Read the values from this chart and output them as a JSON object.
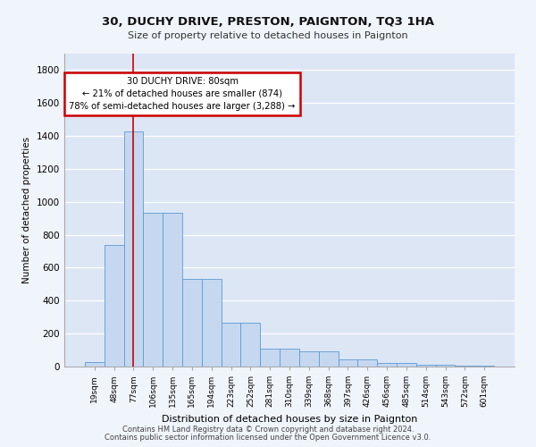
{
  "title": "30, DUCHY DRIVE, PRESTON, PAIGNTON, TQ3 1HA",
  "subtitle": "Size of property relative to detached houses in Paignton",
  "xlabel": "Distribution of detached houses by size in Paignton",
  "ylabel": "Number of detached properties",
  "categories": [
    "19sqm",
    "48sqm",
    "77sqm",
    "106sqm",
    "135sqm",
    "165sqm",
    "194sqm",
    "223sqm",
    "252sqm",
    "281sqm",
    "310sqm",
    "339sqm",
    "368sqm",
    "397sqm",
    "426sqm",
    "456sqm",
    "485sqm",
    "514sqm",
    "543sqm",
    "572sqm",
    "601sqm"
  ],
  "values": [
    25,
    740,
    1430,
    935,
    935,
    530,
    530,
    265,
    265,
    110,
    110,
    95,
    95,
    45,
    45,
    20,
    20,
    10,
    10,
    8,
    8
  ],
  "bar_color": "#c5d8f0",
  "bar_edge_color": "#5b9bd5",
  "bg_color": "#dce6f5",
  "grid_color": "#ffffff",
  "redline_index": 2,
  "annotation_line1": "30 DUCHY DRIVE: 80sqm",
  "annotation_line2": "← 21% of detached houses are smaller (874)",
  "annotation_line3": "78% of semi-detached houses are larger (3,288) →",
  "annotation_box_color": "#ffffff",
  "annotation_box_edge": "#cc0000",
  "ylim": [
    0,
    1900
  ],
  "yticks": [
    0,
    200,
    400,
    600,
    800,
    1000,
    1200,
    1400,
    1600,
    1800
  ],
  "footer1": "Contains HM Land Registry data © Crown copyright and database right 2024.",
  "footer2": "Contains public sector information licensed under the Open Government Licence v3.0."
}
